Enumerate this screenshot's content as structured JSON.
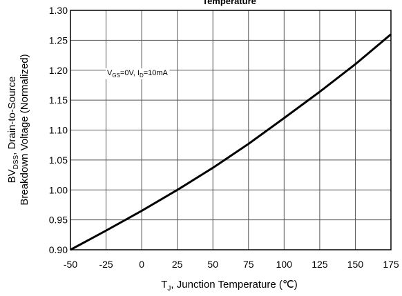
{
  "chart_data": {
    "type": "line",
    "title": "Temperature",
    "xlabel_main": "T",
    "xlabel_sub": "J",
    "xlabel_rest": ", Junction Temperature  (℃)",
    "ylabel_line1_main": "BV",
    "ylabel_line1_sub": "DSS",
    "ylabel_line1_rest": ", Drain-to-Source",
    "ylabel_line2": "Breakdown Voltage (Normalized)",
    "x_ticks": [
      "-50",
      "-25",
      "0",
      "25",
      "50",
      "75",
      "100",
      "125",
      "150",
      "175"
    ],
    "y_ticks": [
      "0.90",
      "0.95",
      "1.00",
      "1.05",
      "1.10",
      "1.15",
      "1.20",
      "1.25",
      "1.30"
    ],
    "xlim": [
      -50,
      175
    ],
    "ylim": [
      0.9,
      1.3
    ],
    "grid": true,
    "annotation": {
      "v": "V",
      "v_sub": "GS",
      "v_rest": "=0V, I",
      "i_sub": "D",
      "i_rest": "=10mA"
    },
    "series": [
      {
        "color": "#000000",
        "x": [
          -50,
          -25,
          0,
          25,
          50,
          75,
          100,
          125,
          150,
          175
        ],
        "y": [
          0.9,
          0.932,
          0.965,
          1.0,
          1.037,
          1.077,
          1.12,
          1.164,
          1.21,
          1.26
        ]
      }
    ]
  }
}
